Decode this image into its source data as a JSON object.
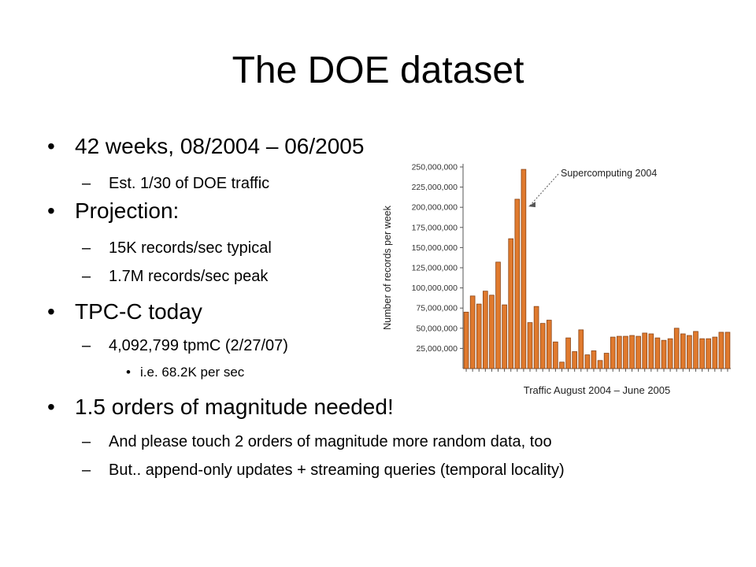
{
  "slide": {
    "title": "The DOE dataset"
  },
  "bullets": [
    {
      "level": 1,
      "text": "42 weeks, 08/2004 – 06/2005"
    },
    {
      "level": 2,
      "text": "Est. 1/30 of DOE traffic"
    },
    {
      "level": 1,
      "text": "Projection:"
    },
    {
      "level": 2,
      "text": "15K records/sec typical"
    },
    {
      "level": 2,
      "text": "1.7M records/sec peak"
    },
    {
      "level": 1,
      "text": "TPC-C today"
    },
    {
      "level": 2,
      "text": "4,092,799 tpmC (2/27/07)"
    },
    {
      "level": 3,
      "text": "i.e. 68.2K per sec"
    },
    {
      "level": 1,
      "text": "1.5 orders of magnitude needed!"
    },
    {
      "level": 2,
      "text": "And please touch 2 orders of magnitude more random data, too"
    },
    {
      "level": 2,
      "text": "But.. append-only updates + streaming queries (temporal locality)"
    }
  ],
  "markers": {
    "level1": "•",
    "level2": "–",
    "level3": "•"
  },
  "chart_data": {
    "type": "bar",
    "xlabel": "Traffic August 2004 – June 2005",
    "ylabel": "Number of records per week",
    "ylim": [
      0,
      250000000
    ],
    "yticks": [
      25000000,
      50000000,
      75000000,
      100000000,
      125000000,
      150000000,
      175000000,
      200000000,
      225000000,
      250000000
    ],
    "ytick_labels": [
      "25,000,000",
      "50,000,000",
      "75,000,000",
      "100,000,000",
      "125,000,000",
      "150,000,000",
      "175,000,000",
      "200,000,000",
      "225,000,000",
      "250,000,000"
    ],
    "values": [
      70000000,
      90000000,
      80000000,
      96000000,
      91000000,
      132000000,
      79000000,
      161000000,
      210000000,
      247000000,
      57000000,
      77000000,
      56000000,
      60000000,
      33000000,
      8000000,
      38000000,
      21000000,
      48000000,
      17000000,
      22000000,
      10000000,
      19000000,
      39000000,
      40000000,
      40000000,
      41000000,
      40000000,
      44000000,
      43000000,
      38000000,
      35000000,
      37000000,
      50000000,
      43000000,
      41000000,
      46000000,
      37000000,
      37000000,
      39000000,
      45000000,
      45000000
    ],
    "annotation": {
      "text": "Supercomputing 2004",
      "target_index": 9
    },
    "colors": {
      "bar": "#e07a2e",
      "bar_edge": "#8a4416",
      "axis": "#555555",
      "arrow": "#555555"
    },
    "grid": false
  }
}
